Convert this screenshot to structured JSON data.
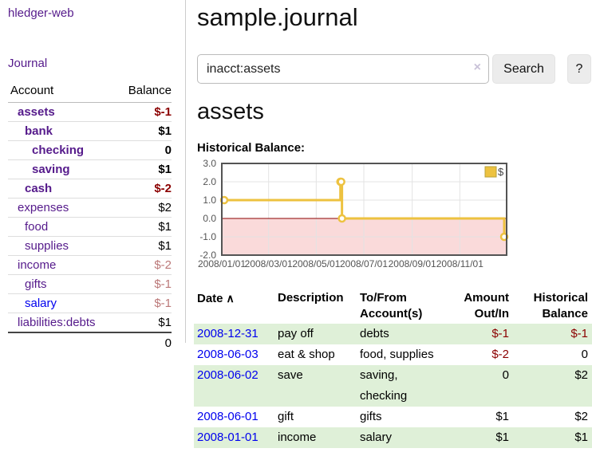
{
  "app": {
    "title": "hledger-web",
    "nav_journal": "Journal"
  },
  "sidebar": {
    "header": {
      "account": "Account",
      "balance": "Balance"
    },
    "accounts": [
      {
        "name": "assets",
        "balance": "$-1"
      },
      {
        "name": "bank",
        "balance": "$1"
      },
      {
        "name": "checking",
        "balance": "0"
      },
      {
        "name": "saving",
        "balance": "$1"
      },
      {
        "name": "cash",
        "balance": "$-2"
      },
      {
        "name": "expenses",
        "balance": "$2"
      },
      {
        "name": "food",
        "balance": "$1"
      },
      {
        "name": "supplies",
        "balance": "$1"
      },
      {
        "name": "income",
        "balance": "$-2"
      },
      {
        "name": "gifts",
        "balance": "$-1"
      },
      {
        "name": "salary",
        "balance": "$-1"
      },
      {
        "name": "liabilities:debts",
        "balance": "$1"
      }
    ],
    "total": "0"
  },
  "main": {
    "title": "sample.journal",
    "search": {
      "value": "inacct:assets",
      "clear_icon": "×",
      "search_button": "Search",
      "help_button": "?"
    },
    "heading": "assets",
    "chart_title": "Historical Balance:"
  },
  "icons": {
    "sort_ascending": "∧"
  },
  "chart_data": {
    "type": "line",
    "title": "Historical Balance:",
    "line_style": "step-after",
    "legend": [
      {
        "label": "$",
        "color": "#edc240"
      }
    ],
    "legend_position": "top-right",
    "grid": true,
    "x_type": "date-days-from-2008-01-01",
    "points": [
      {
        "date": "2008-01-01",
        "x": 0,
        "y": 1
      },
      {
        "date": "2008-06-01",
        "x": 152,
        "y": 2
      },
      {
        "date": "2008-06-02",
        "x": 153,
        "y": 2
      },
      {
        "date": "2008-06-03",
        "x": 154,
        "y": 0
      },
      {
        "date": "2008-12-31",
        "x": 365,
        "y": -1
      }
    ],
    "xlim": [
      0,
      365
    ],
    "ylim": [
      -2,
      3
    ],
    "yticks": [
      {
        "v": 3,
        "label": "3.0"
      },
      {
        "v": 2,
        "label": "2.0"
      },
      {
        "v": 1,
        "label": "1.0"
      },
      {
        "v": 0,
        "label": "0.0"
      },
      {
        "v": -1,
        "label": "-1.0"
      },
      {
        "v": -2,
        "label": "-2.0"
      }
    ],
    "xticks": [
      {
        "v": 0,
        "label": "2008/01/01"
      },
      {
        "v": 60,
        "label": "2008/03/01"
      },
      {
        "v": 121,
        "label": "2008/05/01"
      },
      {
        "v": 182,
        "label": "2008/07/01"
      },
      {
        "v": 244,
        "label": "2008/09/01"
      },
      {
        "v": 305,
        "label": "2008/11/01"
      }
    ],
    "series_color": "#edc240",
    "negative_region_color": "#fadada",
    "zero_line_color": "#8b0000",
    "border_color": "#545454",
    "gridline_color": "#e3e3e3",
    "tick_color": "#545454"
  },
  "register": {
    "headers": {
      "date": "Date",
      "description": "Description",
      "account": "To/From Account(s)",
      "amount": "Amount Out/In",
      "balance": "Historical Balance"
    },
    "rows": [
      {
        "date": "2008-12-31",
        "description": "pay off",
        "accounts": "debts",
        "amount": "$-1",
        "balance": "$-1"
      },
      {
        "date": "2008-06-03",
        "description": "eat & shop",
        "accounts": "food, supplies",
        "amount": "$-2",
        "balance": "0"
      },
      {
        "date": "2008-06-02",
        "description": "save",
        "accounts": "saving, checking",
        "amount": "0",
        "balance": "$2"
      },
      {
        "date": "2008-06-01",
        "description": "gift",
        "accounts": "gifts",
        "amount": "$1",
        "balance": "$2"
      },
      {
        "date": "2008-01-01",
        "description": "income",
        "accounts": "salary",
        "amount": "$1",
        "balance": "$1"
      }
    ]
  },
  "colors": {
    "link_purple": "#551a8b",
    "link_blue": "#0000ee",
    "negative_strong": "#8b0000",
    "negative_soft": "#bb7878",
    "row_highlight_green": "#dff0d8",
    "chart_yellow": "#edc240"
  }
}
